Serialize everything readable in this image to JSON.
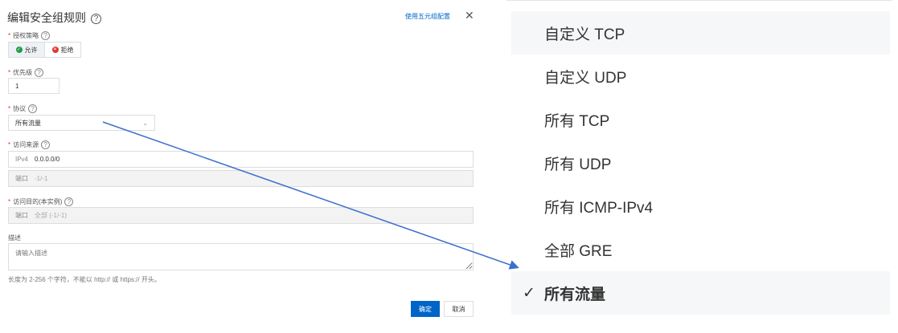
{
  "dialog": {
    "title": "编辑安全组规则",
    "link": "使用五元组配置",
    "close": "✕",
    "policy": {
      "label": "授权策略",
      "options": [
        "允许",
        "拒绝"
      ],
      "selected": "允许"
    },
    "priority": {
      "label": "优先级",
      "value": "1"
    },
    "protocol": {
      "label": "协议",
      "value": "所有流量"
    },
    "source": {
      "label": "访问来源",
      "ip_prefix": "IPv4",
      "ip_value": "0.0.0.0/0",
      "port_prefix": "端口",
      "port_value": "-1/-1"
    },
    "dest": {
      "label": "访问目的(本实例)",
      "port_prefix": "端口",
      "port_value": "全部 (-1/-1)"
    },
    "desc": {
      "label": "描述",
      "placeholder": "请输入描述",
      "hint": "长度为 2-256 个字符，不能以 http:// 或 https:// 开头。"
    },
    "ok": "确定",
    "cancel": "取消"
  },
  "dropdown": {
    "options": [
      "自定义 TCP",
      "自定义 UDP",
      "所有 TCP",
      "所有 UDP",
      "所有 ICMP-IPv4",
      "全部 GRE",
      "所有流量"
    ],
    "selected": "所有流量",
    "hovered": "自定义 TCP",
    "check": "✓"
  },
  "colors": {
    "primary": "#0064c8",
    "arrow": "#3a6fcf",
    "required": "#e0322f"
  }
}
